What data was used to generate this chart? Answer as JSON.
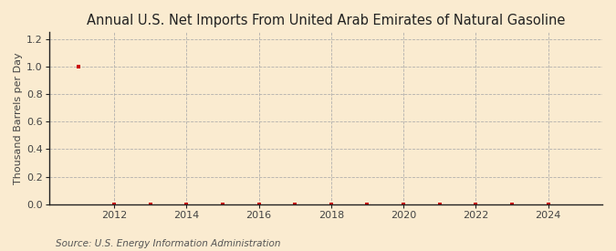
{
  "title": "Annual U.S. Net Imports From United Arab Emirates of Natural Gasoline",
  "ylabel": "Thousand Barrels per Day",
  "source": "Source: U.S. Energy Information Administration",
  "years": [
    2011,
    2012,
    2013,
    2014,
    2015,
    2016,
    2017,
    2018,
    2019,
    2020,
    2021,
    2022,
    2023,
    2024
  ],
  "values": [
    1.0,
    0.0,
    0.0,
    0.0,
    0.0,
    0.0,
    0.0,
    0.0,
    0.0,
    0.0,
    0.0,
    0.0,
    0.0,
    0.0
  ],
  "xlim": [
    2010.2,
    2025.5
  ],
  "ylim": [
    0.0,
    1.25
  ],
  "yticks": [
    0.0,
    0.2,
    0.4,
    0.6,
    0.8,
    1.0,
    1.2
  ],
  "xticks": [
    2012,
    2014,
    2016,
    2018,
    2020,
    2022,
    2024
  ],
  "background_color": "#faebd0",
  "plot_bg_color": "#faebd0",
  "marker_color": "#cc0000",
  "grid_color": "#aaaaaa",
  "spine_color": "#222222",
  "title_fontsize": 10.5,
  "label_fontsize": 8,
  "tick_fontsize": 8,
  "source_fontsize": 7.5
}
